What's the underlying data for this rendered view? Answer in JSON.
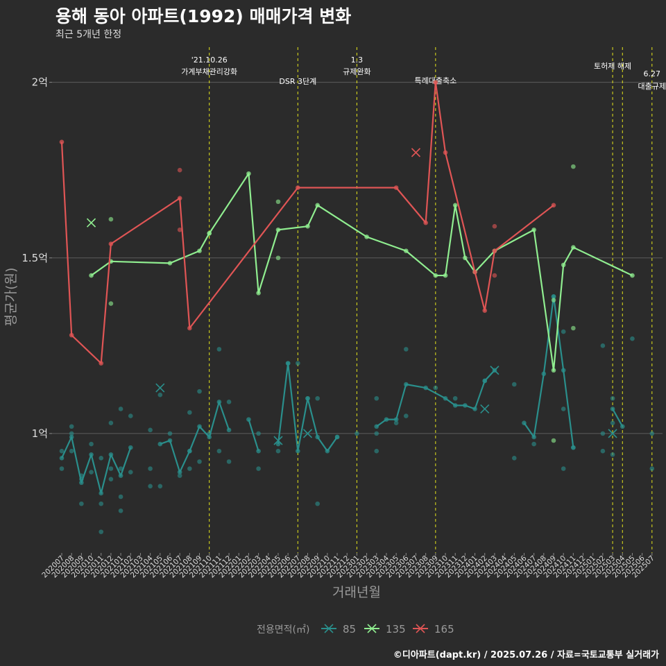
{
  "title": "용해 동아 아파트(1992) 매매가격 변화",
  "subtitle": "최근 5개년 한정",
  "caption": "©디아파트(dapt.kr) / 2025.07.26 / 자료=국토교통부 실거래가",
  "chart_data": {
    "type": "line",
    "xlabel": "거래년월",
    "ylabel": "평균가(원)",
    "ylim": [
      0.66,
      2.1
    ],
    "yticks": [
      {
        "v": 1.0,
        "label": "1억"
      },
      {
        "v": 1.5,
        "label": "1.5억"
      },
      {
        "v": 2.0,
        "label": "2억"
      }
    ],
    "months": [
      "202007",
      "202008",
      "202009",
      "202010",
      "202011",
      "202012",
      "202101",
      "202102",
      "202103",
      "202104",
      "202105",
      "202106",
      "202107",
      "202108",
      "202109",
      "202110",
      "202111",
      "202112",
      "202201",
      "202202",
      "202203",
      "202204",
      "202205",
      "202206",
      "202207",
      "202208",
      "202209",
      "202210",
      "202211",
      "202212",
      "202301",
      "202302",
      "202303",
      "202304",
      "202305",
      "202306",
      "202307",
      "202308",
      "202309",
      "202310",
      "202311",
      "202312",
      "202401",
      "202402",
      "202403",
      "202404",
      "202405",
      "202406",
      "202407",
      "202408",
      "202409",
      "202410",
      "202411",
      "202412",
      "202501",
      "202502",
      "202503",
      "202504",
      "202505",
      "202506",
      "202507"
    ],
    "legend_title": "전용면적(㎡)",
    "legend_position": "bottom",
    "events": [
      {
        "x": 15,
        "label": "'21.10.26\n가계부채관리강화"
      },
      {
        "x": 24,
        "label": "DSR 3단계"
      },
      {
        "x": 30,
        "label": "1.3\n규제완화"
      },
      {
        "x": 38,
        "label": "특례대출축소"
      },
      {
        "x": 56,
        "label": "토허제 해제"
      },
      {
        "x": 57,
        "label": ""
      },
      {
        "x": 60,
        "label": "6.27\n대출규제"
      }
    ],
    "series": [
      {
        "name": "85",
        "color": "#2a8f8c",
        "line": [
          [
            0,
            0.93
          ],
          [
            1,
            0.99
          ],
          [
            2,
            0.86
          ],
          [
            3,
            0.94
          ],
          [
            4,
            0.83
          ],
          [
            5,
            0.94
          ],
          [
            6,
            0.88
          ],
          [
            7,
            0.96
          ],
          null,
          [
            10,
            0.97
          ],
          [
            11,
            0.98
          ],
          [
            12,
            0.89
          ],
          [
            13,
            0.95
          ],
          [
            14,
            1.02
          ],
          [
            15,
            0.99
          ],
          [
            16,
            1.09
          ],
          [
            17,
            1.01
          ],
          null,
          [
            19,
            1.04
          ],
          [
            20,
            0.95
          ],
          null,
          [
            22,
            0.97
          ],
          [
            23,
            1.2
          ],
          [
            24,
            0.95
          ],
          [
            25,
            1.1
          ],
          [
            26,
            0.99
          ],
          [
            27,
            0.95
          ],
          [
            28,
            0.99
          ],
          null,
          [
            32,
            1.02
          ],
          [
            33,
            1.04
          ],
          [
            34,
            1.04
          ],
          [
            35,
            1.14
          ],
          [
            37,
            1.13
          ],
          [
            39,
            1.1
          ],
          [
            40,
            1.08
          ],
          [
            41,
            1.08
          ],
          [
            42,
            1.07
          ],
          [
            43,
            1.15
          ],
          [
            44,
            1.18
          ],
          null,
          [
            47,
            1.03
          ],
          [
            48,
            0.99
          ],
          [
            49,
            1.17
          ],
          [
            50,
            1.39
          ],
          [
            51,
            1.18
          ],
          [
            52,
            0.96
          ],
          null,
          [
            56,
            1.07
          ],
          [
            57,
            1.02
          ]
        ],
        "points": [
          [
            0,
            0.95
          ],
          [
            0,
            0.9
          ],
          [
            1,
            1.02
          ],
          [
            1,
            1.0
          ],
          [
            1,
            0.95
          ],
          [
            2,
            0.8
          ],
          [
            2,
            0.88
          ],
          [
            2,
            0.87
          ],
          [
            3,
            0.97
          ],
          [
            3,
            0.89
          ],
          [
            4,
            0.93
          ],
          [
            4,
            0.8
          ],
          [
            4,
            0.72
          ],
          [
            5,
            0.87
          ],
          [
            5,
            0.9
          ],
          [
            5,
            1.03
          ],
          [
            6,
            1.07
          ],
          [
            6,
            0.82
          ],
          [
            6,
            0.78
          ],
          [
            6,
            0.9
          ],
          [
            7,
            1.05
          ],
          [
            7,
            0.89
          ],
          [
            9,
            1.01
          ],
          [
            9,
            0.9
          ],
          [
            9,
            0.85
          ],
          [
            10,
            0.85
          ],
          [
            10,
            1.11
          ],
          [
            11,
            1.0
          ],
          [
            12,
            0.88
          ],
          [
            13,
            0.95
          ],
          [
            13,
            0.9
          ],
          [
            13,
            1.06
          ],
          [
            14,
            0.92
          ],
          [
            14,
            1.12
          ],
          [
            15,
            1.0
          ],
          [
            16,
            1.24
          ],
          [
            16,
            0.95
          ],
          [
            17,
            1.09
          ],
          [
            17,
            0.92
          ],
          [
            20,
            1.0
          ],
          [
            20,
            0.9
          ],
          [
            22,
            0.95
          ],
          [
            23,
            1.2
          ],
          [
            24,
            1.2
          ],
          [
            25,
            1.1
          ],
          [
            26,
            1.1
          ],
          [
            26,
            0.8
          ],
          [
            28,
            0.99
          ],
          [
            30,
            1.0
          ],
          [
            32,
            1.1
          ],
          [
            32,
            0.95
          ],
          [
            32,
            1.0
          ],
          [
            34,
            1.03
          ],
          [
            35,
            1.24
          ],
          [
            35,
            1.05
          ],
          [
            38,
            1.13
          ],
          [
            40,
            1.1
          ],
          [
            43,
            1.15
          ],
          [
            46,
            1.14
          ],
          [
            46,
            0.93
          ],
          [
            48,
            0.97
          ],
          [
            50,
            1.39
          ],
          [
            51,
            1.29
          ],
          [
            51,
            0.9
          ],
          [
            51,
            1.07
          ],
          [
            52,
            0.96
          ],
          [
            55,
            1.25
          ],
          [
            55,
            0.95
          ],
          [
            55,
            1.0
          ],
          [
            56,
            1.03
          ],
          [
            56,
            1.1
          ],
          [
            56,
            0.94
          ],
          [
            58,
            1.27
          ],
          [
            60,
            1.0
          ],
          [
            60,
            0.9
          ]
        ],
        "cancelled": [
          [
            10,
            1.13
          ],
          [
            22,
            0.98
          ],
          [
            25,
            1.0
          ],
          [
            43,
            1.07
          ],
          [
            44,
            1.18
          ],
          [
            56,
            1.0
          ]
        ]
      },
      {
        "name": "135",
        "color": "#90ee90",
        "line": [
          [
            3,
            1.45
          ],
          [
            5,
            1.49
          ],
          [
            11,
            1.485
          ],
          [
            14,
            1.52
          ],
          [
            15,
            1.57
          ],
          [
            19,
            1.74
          ],
          [
            20,
            1.4
          ],
          [
            22,
            1.58
          ],
          [
            25,
            1.59
          ],
          [
            26,
            1.65
          ],
          [
            31,
            1.56
          ],
          [
            35,
            1.52
          ],
          [
            38,
            1.45
          ],
          [
            39,
            1.45
          ],
          [
            40,
            1.65
          ],
          [
            41,
            1.5
          ],
          [
            42,
            1.46
          ],
          [
            44,
            1.52
          ],
          [
            48,
            1.58
          ],
          [
            50,
            1.18
          ],
          [
            51,
            1.48
          ],
          [
            52,
            1.53
          ],
          [
            58,
            1.45
          ]
        ],
        "points": [
          [
            5,
            1.37
          ],
          [
            5,
            1.61
          ],
          [
            15,
            1.57
          ],
          [
            22,
            1.66
          ],
          [
            22,
            1.5
          ],
          [
            50,
            0.98
          ],
          [
            50,
            1.38
          ],
          [
            52,
            1.3
          ],
          [
            52,
            1.76
          ]
        ],
        "cancelled": [
          [
            3,
            1.6
          ]
        ]
      },
      {
        "name": "165",
        "color": "#e05555",
        "line": [
          [
            0,
            1.83
          ],
          [
            1,
            1.28
          ],
          [
            4,
            1.2
          ],
          [
            5,
            1.54
          ],
          [
            12,
            1.67
          ],
          [
            13,
            1.3
          ],
          [
            24,
            1.7
          ],
          [
            34,
            1.7
          ],
          [
            37,
            1.6
          ],
          [
            38,
            2.0
          ],
          [
            39,
            1.8
          ],
          [
            42,
            1.46
          ],
          [
            43,
            1.35
          ],
          [
            44,
            1.52
          ],
          [
            50,
            1.65
          ]
        ],
        "points": [
          [
            12,
            1.75
          ],
          [
            12,
            1.58
          ],
          [
            44,
            1.59
          ],
          [
            44,
            1.45
          ]
        ],
        "cancelled": [
          [
            36,
            1.8
          ]
        ]
      }
    ]
  }
}
